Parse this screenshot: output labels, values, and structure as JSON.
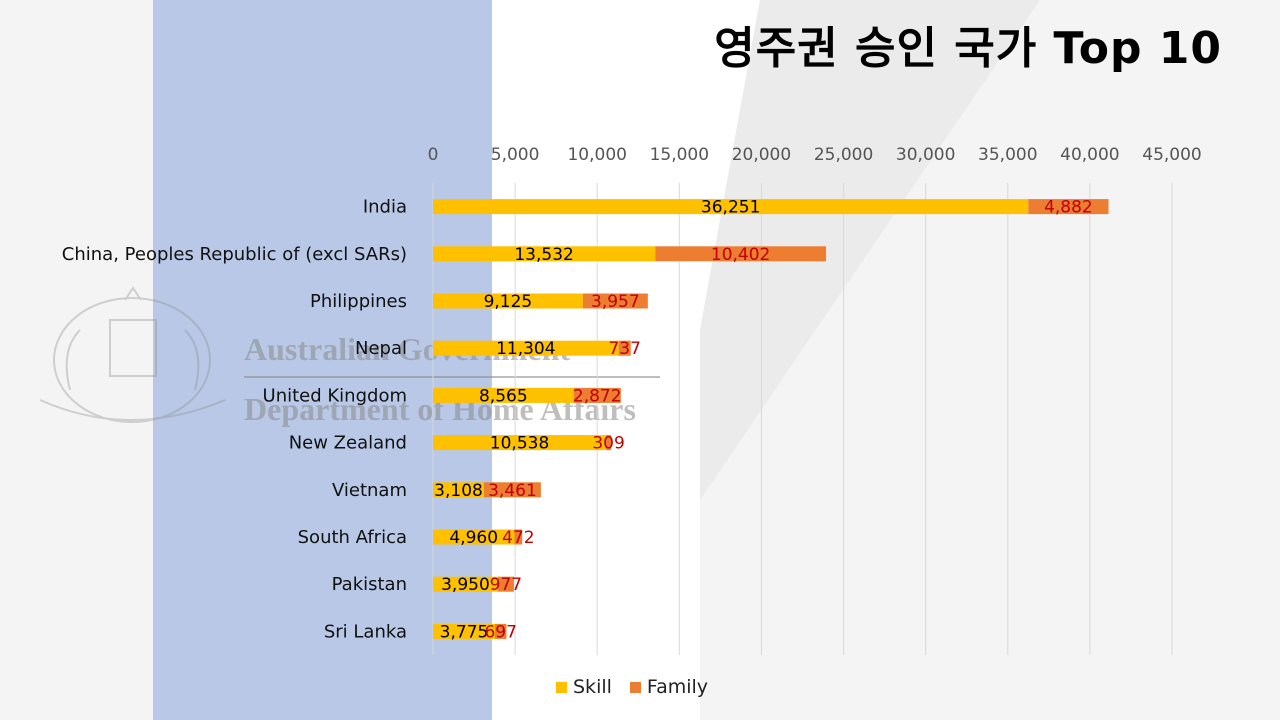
{
  "title": "영주권 승인 국가 Top 10",
  "watermark": {
    "line1": "Australian Government",
    "line2": "Department of Home Affairs"
  },
  "colors": {
    "skill": "#FFC000",
    "family": "#ED7D31",
    "family_label": "#C00000",
    "panel": "#B8C8E6",
    "grid": "#D9D9D9"
  },
  "chart_data": {
    "type": "bar",
    "orientation": "horizontal",
    "stacked": true,
    "title": "영주권 승인 국가 Top 10",
    "categories": [
      "India",
      "China, Peoples Republic of (excl SARs)",
      "Philippines",
      "Nepal",
      "United Kingdom",
      "New Zealand",
      "Vietnam",
      "South Africa",
      "Pakistan",
      "Sri Lanka"
    ],
    "series": [
      {
        "name": "Skill",
        "values": [
          36251,
          13532,
          9125,
          11304,
          8565,
          10538,
          3108,
          4960,
          3950,
          3775
        ],
        "labels": [
          "36,251",
          "13,532",
          "9,125",
          "11,304",
          "8,565",
          "10,538",
          "3,108",
          "4,960",
          "3,950",
          "3,775"
        ]
      },
      {
        "name": "Family",
        "values": [
          4882,
          10402,
          3957,
          737,
          2872,
          309,
          3461,
          472,
          977,
          697
        ],
        "labels": [
          "4,882",
          "10,402",
          "3,957",
          "737",
          "2,872",
          "309",
          "3,461",
          "472",
          "977",
          "697"
        ]
      }
    ],
    "xlim": [
      0,
      45000
    ],
    "xticks": [
      0,
      5000,
      10000,
      15000,
      20000,
      25000,
      30000,
      35000,
      40000,
      45000
    ],
    "xtick_labels": [
      "0",
      "5,000",
      "10,000",
      "15,000",
      "20,000",
      "25,000",
      "30,000",
      "35,000",
      "40,000",
      "45,000"
    ],
    "xaxis_position": "top",
    "grid": true,
    "legend": "bottom"
  }
}
